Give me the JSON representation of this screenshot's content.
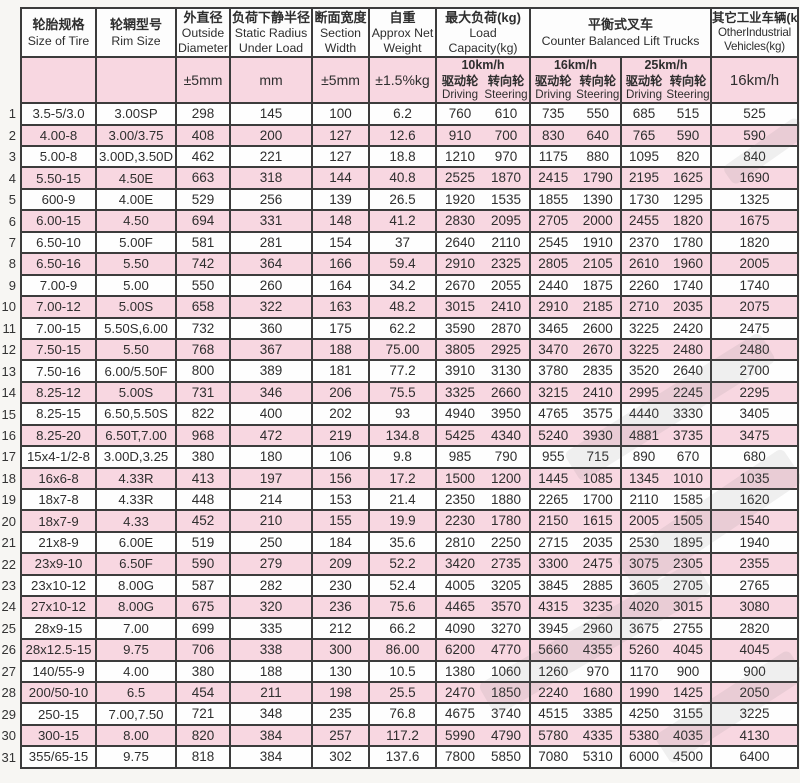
{
  "table": {
    "header": {
      "tire": {
        "zh": "轮胎规格",
        "en": "Size of Tire"
      },
      "rim": {
        "zh": "轮辋型号",
        "en": "Rim Size"
      },
      "outside_diameter": {
        "zh": "外直径",
        "en": "Outside Diameter",
        "unit": "±5mm"
      },
      "static_radius": {
        "zh": "负荷下静半径",
        "en": "Static Radius Under Load",
        "unit": "mm"
      },
      "section_width": {
        "zh": "断面宽度",
        "en": "Section Width",
        "unit": "±5mm"
      },
      "net_weight": {
        "zh": "自重",
        "en": "Approx Net Weight",
        "unit": "±1.5%kg"
      },
      "load_capacity": {
        "zh": "最大负荷(kg)",
        "en": "Load Capacity(kg)"
      },
      "counter_balanced": {
        "zh": "平衡式叉车",
        "en": "Counter Balanced Lift Trucks"
      },
      "other_industrial": {
        "zh": "其它工业车辆(kg)",
        "en1": "OtherIndustrial",
        "en2": "Vehicles(kg)",
        "speed": "16km/h"
      },
      "speeds": [
        "10km/h",
        "16km/h",
        "25km/h"
      ],
      "wheel_zh": {
        "driving": "驱动轮",
        "steering": "转向轮"
      },
      "wheel_en": {
        "driving": "Driving",
        "steering": "Steering"
      }
    },
    "colors": {
      "row_pink": "#f8d7e1",
      "row_white": "#fefefe",
      "border": "#3c3c3c",
      "text": "#2e2e2e"
    },
    "rows": [
      [
        "1",
        "3.5-5/3.0",
        "3.00SP",
        "298",
        "145",
        "100",
        "6.2",
        "760",
        "610",
        "735",
        "550",
        "685",
        "515",
        "525"
      ],
      [
        "2",
        "4.00-8",
        "3.00/3.75",
        "408",
        "200",
        "127",
        "12.6",
        "910",
        "700",
        "830",
        "640",
        "765",
        "590",
        "590"
      ],
      [
        "3",
        "5.00-8",
        "3.00D,3.50D",
        "462",
        "221",
        "127",
        "18.8",
        "1210",
        "970",
        "1175",
        "880",
        "1095",
        "820",
        "840"
      ],
      [
        "4",
        "5.50-15",
        "4.50E",
        "663",
        "318",
        "144",
        "40.8",
        "2525",
        "1870",
        "2415",
        "1790",
        "2195",
        "1625",
        "1690"
      ],
      [
        "5",
        "600-9",
        "4.00E",
        "529",
        "256",
        "139",
        "26.5",
        "1920",
        "1535",
        "1855",
        "1390",
        "1730",
        "1295",
        "1325"
      ],
      [
        "6",
        "6.00-15",
        "4.50",
        "694",
        "331",
        "148",
        "41.2",
        "2830",
        "2095",
        "2705",
        "2000",
        "2455",
        "1820",
        "1675"
      ],
      [
        "7",
        "6.50-10",
        "5.00F",
        "581",
        "281",
        "154",
        "37",
        "2640",
        "2110",
        "2545",
        "1910",
        "2370",
        "1780",
        "1820"
      ],
      [
        "8",
        "6.50-16",
        "5.50",
        "742",
        "364",
        "166",
        "59.4",
        "2910",
        "2325",
        "2805",
        "2105",
        "2610",
        "1960",
        "2005"
      ],
      [
        "9",
        "7.00-9",
        "5.00",
        "550",
        "260",
        "164",
        "34.2",
        "2670",
        "2055",
        "2440",
        "1875",
        "2260",
        "1740",
        "1740"
      ],
      [
        "10",
        "7.00-12",
        "5.00S",
        "658",
        "322",
        "163",
        "48.2",
        "3015",
        "2410",
        "2910",
        "2185",
        "2710",
        "2035",
        "2075"
      ],
      [
        "11",
        "7.00-15",
        "5.50S,6.00",
        "732",
        "360",
        "175",
        "62.2",
        "3590",
        "2870",
        "3465",
        "2600",
        "3225",
        "2420",
        "2475"
      ],
      [
        "12",
        "7.50-15",
        "5.50",
        "768",
        "367",
        "188",
        "75.00",
        "3805",
        "2925",
        "3470",
        "2670",
        "3225",
        "2480",
        "2480"
      ],
      [
        "13",
        "7.50-16",
        "6.00/5.50F",
        "800",
        "389",
        "181",
        "77.2",
        "3910",
        "3130",
        "3780",
        "2835",
        "3520",
        "2640",
        "2700"
      ],
      [
        "14",
        "8.25-12",
        "5.00S",
        "731",
        "346",
        "206",
        "75.5",
        "3325",
        "2660",
        "3215",
        "2410",
        "2995",
        "2245",
        "2295"
      ],
      [
        "15",
        "8.25-15",
        "6.50,5.50S",
        "822",
        "400",
        "202",
        "93",
        "4940",
        "3950",
        "4765",
        "3575",
        "4440",
        "3330",
        "3405"
      ],
      [
        "16",
        "8.25-20",
        "6.50T,7.00",
        "968",
        "472",
        "219",
        "134.8",
        "5425",
        "4340",
        "5240",
        "3930",
        "4881",
        "3735",
        "3475"
      ],
      [
        "17",
        "15x4-1/2-8",
        "3.00D,3.25",
        "380",
        "180",
        "106",
        "9.8",
        "985",
        "790",
        "955",
        "715",
        "890",
        "670",
        "680"
      ],
      [
        "18",
        "16x6-8",
        "4.33R",
        "413",
        "197",
        "156",
        "17.2",
        "1500",
        "1200",
        "1445",
        "1085",
        "1345",
        "1010",
        "1035"
      ],
      [
        "19",
        "18x7-8",
        "4.33R",
        "448",
        "214",
        "153",
        "21.4",
        "2350",
        "1880",
        "2265",
        "1700",
        "2110",
        "1585",
        "1620"
      ],
      [
        "20",
        "18x7-9",
        "4.33",
        "452",
        "210",
        "155",
        "19.9",
        "2230",
        "1780",
        "2150",
        "1615",
        "2005",
        "1505",
        "1540"
      ],
      [
        "21",
        "21x8-9",
        "6.00E",
        "519",
        "250",
        "184",
        "35.6",
        "2810",
        "2250",
        "2715",
        "2035",
        "2530",
        "1895",
        "1940"
      ],
      [
        "22",
        "23x9-10",
        "6.50F",
        "590",
        "279",
        "209",
        "52.2",
        "3420",
        "2735",
        "3300",
        "2475",
        "3075",
        "2305",
        "2355"
      ],
      [
        "23",
        "23x10-12",
        "8.00G",
        "587",
        "282",
        "230",
        "52.4",
        "4005",
        "3205",
        "3845",
        "2885",
        "3605",
        "2705",
        "2765"
      ],
      [
        "24",
        "27x10-12",
        "8.00G",
        "675",
        "320",
        "236",
        "75.6",
        "4465",
        "3570",
        "4315",
        "3235",
        "4020",
        "3015",
        "3080"
      ],
      [
        "25",
        "28x9-15",
        "7.00",
        "699",
        "335",
        "212",
        "66.2",
        "4090",
        "3270",
        "3945",
        "2960",
        "3675",
        "2755",
        "2820"
      ],
      [
        "26",
        "28x12.5-15",
        "9.75",
        "706",
        "338",
        "300",
        "86.00",
        "6200",
        "4770",
        "5660",
        "4355",
        "5260",
        "4045",
        "4045"
      ],
      [
        "27",
        "140/55-9",
        "4.00",
        "380",
        "188",
        "130",
        "10.5",
        "1380",
        "1060",
        "1260",
        "970",
        "1170",
        "900",
        "900"
      ],
      [
        "28",
        "200/50-10",
        "6.5",
        "454",
        "211",
        "198",
        "25.5",
        "2470",
        "1850",
        "2240",
        "1680",
        "1990",
        "1425",
        "2050"
      ],
      [
        "29",
        "250-15",
        "7.00,7.50",
        "721",
        "348",
        "235",
        "76.8",
        "4675",
        "3740",
        "4515",
        "3385",
        "4250",
        "3155",
        "3225"
      ],
      [
        "30",
        "300-15",
        "8.00",
        "820",
        "384",
        "257",
        "117.2",
        "5990",
        "4790",
        "5780",
        "4335",
        "5380",
        "4035",
        "4130"
      ],
      [
        "31",
        "355/65-15",
        "9.75",
        "818",
        "384",
        "302",
        "137.6",
        "7800",
        "5850",
        "7080",
        "5310",
        "6000",
        "4500",
        "6400"
      ]
    ]
  }
}
